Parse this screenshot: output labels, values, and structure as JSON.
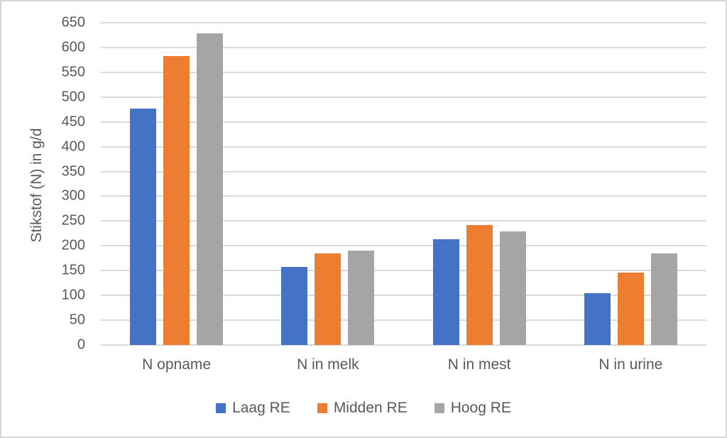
{
  "chart_data": {
    "type": "bar",
    "title": "",
    "categories": [
      "N opname",
      "N in melk",
      "N in mest",
      "N in urine"
    ],
    "series": [
      {
        "name": "Laag RE",
        "color": "#4472C4",
        "values": [
          477,
          158,
          213,
          105
        ]
      },
      {
        "name": "Midden RE",
        "color": "#ED7D31",
        "values": [
          583,
          184,
          242,
          146
        ]
      },
      {
        "name": "Hoog RE",
        "color": "#A5A5A5",
        "values": [
          629,
          191,
          229,
          185
        ]
      }
    ],
    "xlabel": "",
    "ylabel": "Stikstof (N) in g/d",
    "ylim": [
      0,
      650
    ],
    "ytick_step": 50,
    "grid": true,
    "legend_position": "bottom"
  },
  "style": {
    "gridline_color": "#DADADA",
    "text_color": "#595959",
    "frame_border_color": "#D6D6D6",
    "background_color": "#FFFFFF"
  }
}
